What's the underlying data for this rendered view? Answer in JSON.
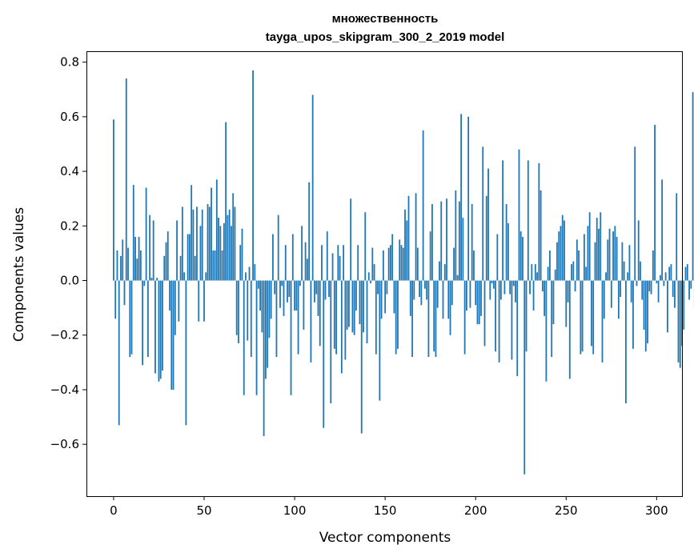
{
  "chart_data": {
    "type": "bar",
    "title": "множественность",
    "subtitle": "tayga_upos_skipgram_300_2_2019 model",
    "xlabel": "Vector components",
    "ylabel": "Components values",
    "xlim": [
      -15,
      314
    ],
    "ylim": [
      -0.79,
      0.84
    ],
    "xticks": [
      0,
      50,
      100,
      150,
      200,
      250,
      300
    ],
    "xtick_labels": [
      "0",
      "50",
      "100",
      "150",
      "200",
      "250",
      "300"
    ],
    "yticks": [
      -0.6,
      -0.4,
      -0.2,
      0.0,
      0.2,
      0.4,
      0.6,
      0.8
    ],
    "ytick_labels": [
      "−0.6",
      "−0.4",
      "−0.2",
      "0.0",
      "0.2",
      "0.4",
      "0.6",
      "0.8"
    ],
    "color": "#1f77b4",
    "values": [
      0.59,
      -0.14,
      0.11,
      -0.53,
      0.09,
      0.15,
      -0.09,
      0.74,
      0.12,
      -0.28,
      -0.27,
      0.35,
      0.16,
      0.08,
      0.16,
      0.11,
      -0.31,
      -0.02,
      0.34,
      -0.28,
      0.24,
      0.01,
      0.22,
      -0.34,
      0.01,
      -0.37,
      -0.36,
      -0.33,
      0.09,
      0.14,
      0.18,
      -0.11,
      -0.4,
      -0.4,
      -0.2,
      0.22,
      -0.15,
      0.09,
      0.27,
      0.03,
      -0.53,
      0.17,
      0.17,
      0.35,
      0.26,
      0.09,
      0.27,
      -0.15,
      0.2,
      0.26,
      -0.15,
      0.03,
      0.28,
      0.27,
      0.34,
      0.11,
      0.11,
      0.37,
      0.23,
      0.2,
      0.11,
      0.21,
      0.58,
      0.24,
      0.26,
      0.2,
      0.32,
      0.27,
      -0.2,
      -0.23,
      0.13,
      0.19,
      -0.42,
      0.03,
      -0.22,
      0.05,
      -0.28,
      0.77,
      0.06,
      -0.42,
      -0.03,
      -0.11,
      -0.19,
      -0.57,
      -0.36,
      -0.32,
      -0.21,
      -0.14,
      0.17,
      -0.05,
      -0.28,
      0.24,
      -0.1,
      -0.02,
      -0.13,
      0.13,
      -0.08,
      -0.06,
      -0.42,
      0.17,
      -0.11,
      -0.11,
      -0.27,
      -0.02,
      0.2,
      -0.18,
      0.14,
      0.08,
      0.36,
      -0.3,
      0.68,
      -0.08,
      -0.05,
      -0.13,
      -0.24,
      0.13,
      -0.54,
      -0.07,
      0.18,
      -0.06,
      -0.45,
      0.1,
      -0.25,
      -0.27,
      0.13,
      0.09,
      -0.34,
      0.13,
      -0.29,
      -0.18,
      -0.17,
      0.3,
      -0.19,
      -0.2,
      -0.11,
      0.13,
      -0.16,
      -0.56,
      -0.19,
      0.25,
      -0.23,
      0.03,
      -0.01,
      0.12,
      0.06,
      -0.27,
      -0.05,
      -0.44,
      -0.14,
      0.11,
      -0.12,
      -0.05,
      0.12,
      0.13,
      0.17,
      -0.12,
      -0.27,
      -0.25,
      0.15,
      0.13,
      0.12,
      0.26,
      0.22,
      0.31,
      -0.13,
      -0.28,
      -0.07,
      0.32,
      0.12,
      -0.06,
      -0.09,
      0.55,
      -0.03,
      -0.07,
      -0.28,
      0.18,
      0.28,
      -0.26,
      -0.28,
      -0.1,
      0.07,
      0.29,
      -0.14,
      0.06,
      0.3,
      -0.14,
      -0.2,
      -0.09,
      0.12,
      0.33,
      0.02,
      0.29,
      0.61,
      0.23,
      -0.27,
      -0.11,
      0.6,
      -0.1,
      0.28,
      0.11,
      -0.09,
      -0.16,
      -0.16,
      -0.13,
      0.49,
      -0.24,
      0.31,
      0.41,
      -0.07,
      -0.01,
      -0.03,
      -0.26,
      0.17,
      -0.3,
      -0.07,
      0.44,
      -0.05,
      0.28,
      0.21,
      -0.05,
      -0.29,
      -0.02,
      -0.08,
      -0.35,
      0.48,
      0.18,
      0.16,
      -0.71,
      -0.26,
      0.44,
      -0.05,
      0.06,
      -0.11,
      0.06,
      0.03,
      0.43,
      0.33,
      -0.04,
      -0.13,
      -0.37,
      0.05,
      0.11,
      -0.28,
      -0.16,
      0.04,
      0.14,
      0.18,
      0.2,
      0.24,
      0.22,
      -0.17,
      -0.08,
      -0.36,
      0.06,
      0.07,
      -0.04,
      0.15,
      0.11,
      -0.27,
      -0.26,
      0.17,
      0.05,
      0.2,
      0.25,
      -0.24,
      -0.27,
      0.14,
      0.23,
      0.19,
      0.25,
      -0.3,
      -0.14,
      0.03,
      0.15,
      0.19,
      -0.1,
      0.18,
      0.2,
      0.16,
      -0.14,
      -0.06,
      0.14,
      0.07,
      -0.45,
      0.03,
      0.13,
      -0.08,
      -0.25,
      0.49,
      -0.02,
      0.22,
      0.07,
      -0.07,
      -0.18,
      -0.26,
      -0.23,
      -0.04,
      -0.05,
      0.11,
      0.57,
      -0.01,
      -0.08,
      0.02,
      0.37,
      -0.02,
      0.03,
      -0.19,
      0.05,
      0.06,
      -0.06,
      -0.1,
      0.32,
      -0.3,
      -0.32,
      -0.24,
      -0.18,
      0.05,
      0.06,
      -0.07,
      -0.03,
      0.69,
      -0.1
    ]
  }
}
